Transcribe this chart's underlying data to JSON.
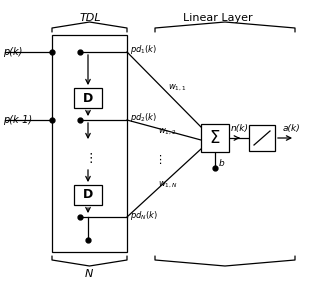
{
  "bg_color": "#ffffff",
  "line_color": "#000000",
  "tdl_label": "TDL",
  "ll_label": "Linear Layer",
  "N_label": "N",
  "D1_label": "D",
  "D2_label": "D",
  "sum_label": "Σ",
  "pk": "p(k)",
  "pk1": "p(k-1)",
  "nk": "n(k)",
  "ak": "a(k)",
  "b_label": "b"
}
